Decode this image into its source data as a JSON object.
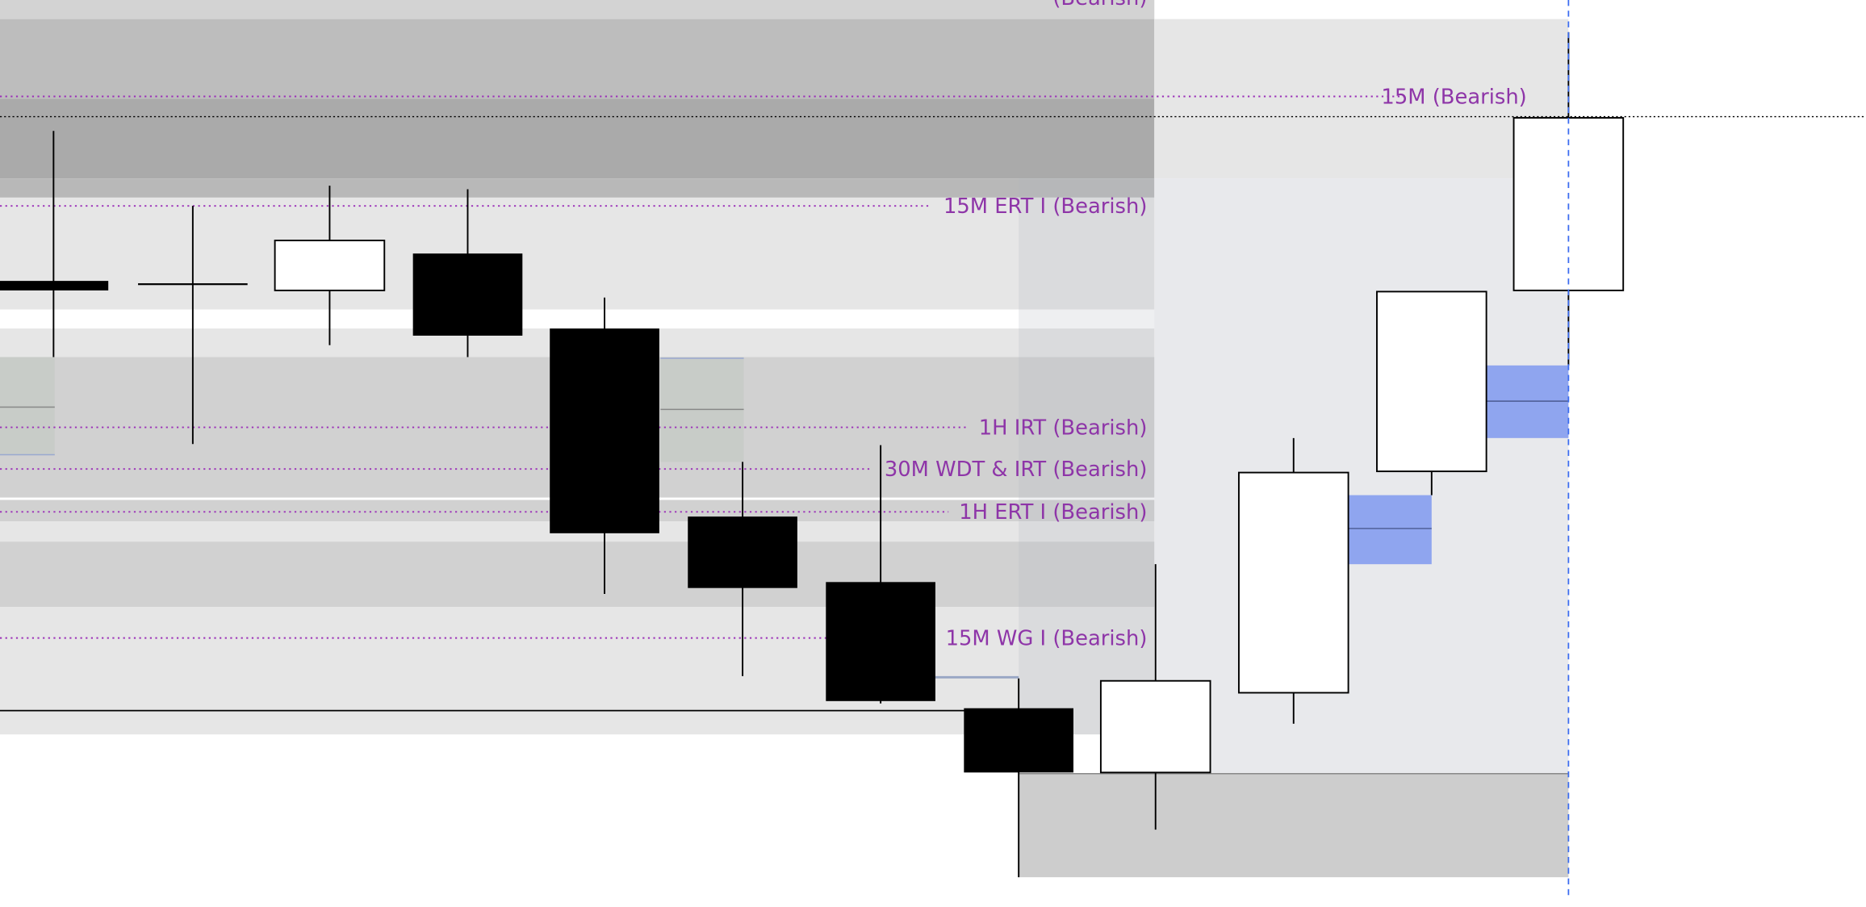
{
  "chart_data": {
    "type": "candlestick",
    "title": "",
    "xlabel": "",
    "ylabel": "",
    "grid": false,
    "colors": {
      "bearish_body": "#000000",
      "bullish_body": "#ffffff",
      "level_label": "#8e35a8",
      "blue_zone": "#8fa5ef",
      "cursor_line": "#3b6cf0"
    },
    "candles": [
      {
        "open": 564,
        "close": 556,
        "high": 690,
        "low": 500
      },
      {
        "open": 562,
        "close": 562,
        "high": 627,
        "low": 427
      },
      {
        "open": 556,
        "close": 598,
        "high": 644,
        "low": 510
      },
      {
        "open": 587,
        "close": 518,
        "high": 641,
        "low": 500
      },
      {
        "open": 524,
        "close": 352,
        "high": 550,
        "low": 301
      },
      {
        "open": 366,
        "close": 306,
        "high": 412,
        "low": 232
      },
      {
        "open": 311,
        "close": 211,
        "high": 426,
        "low": 209
      },
      {
        "open": 205,
        "close": 151,
        "high": 230,
        "low": 63
      },
      {
        "open": 151,
        "close": 228,
        "high": 326,
        "low": 103
      },
      {
        "open": 218,
        "close": 403,
        "high": 432,
        "low": 192
      },
      {
        "open": 404,
        "close": 555,
        "high": 555,
        "low": 384
      },
      {
        "open": 556,
        "close": 701,
        "high": 773,
        "low": 493
      }
    ],
    "levels": [
      {
        "label": "(Bearish)"
      },
      {
        "label": "15M (Bearish)"
      },
      {
        "label": "15M ERT I (Bearish)"
      },
      {
        "label": "1H IRT (Bearish)"
      },
      {
        "label": "30M WDT & IRT (Bearish)"
      },
      {
        "label": "1H ERT I (Bearish)"
      },
      {
        "label": "15M WG I (Bearish)"
      }
    ]
  }
}
